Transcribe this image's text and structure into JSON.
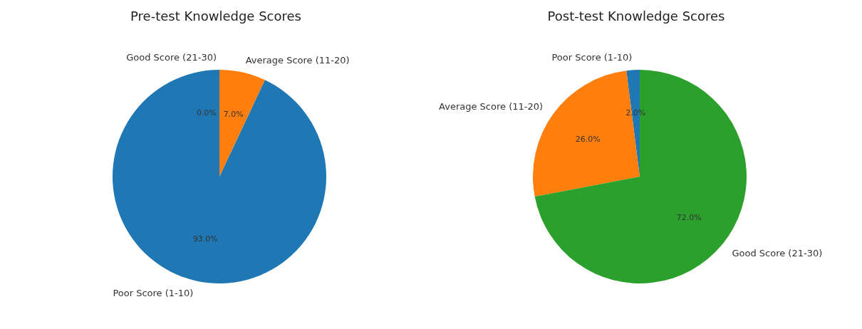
{
  "chart_data": [
    {
      "type": "pie",
      "title": "Pre-test Knowledge Scores",
      "categories": [
        "Poor Score (1-10)",
        "Average Score (11-20)",
        "Good Score (21-30)"
      ],
      "values": [
        93,
        7,
        0
      ],
      "value_labels": [
        "93.0%",
        "7.0%",
        "0.0%"
      ],
      "colors": [
        "#1f77b4",
        "#ff7f0e",
        "#2ca02c"
      ]
    },
    {
      "type": "pie",
      "title": "Post-test Knowledge Scores",
      "categories": [
        "Poor Score (1-10)",
        "Average Score (11-20)",
        "Good Score (21-30)"
      ],
      "values": [
        2,
        26,
        72
      ],
      "value_labels": [
        "2.0%",
        "26.0%",
        "72.0%"
      ],
      "colors": [
        "#1f77b4",
        "#ff7f0e",
        "#2ca02c"
      ]
    }
  ]
}
